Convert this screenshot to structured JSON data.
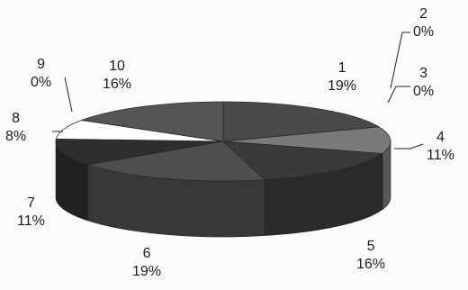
{
  "chart_data": {
    "type": "pie",
    "style": "3d-exploded",
    "categories": [
      "1",
      "2",
      "3",
      "4",
      "5",
      "6",
      "7",
      "8",
      "9",
      "10"
    ],
    "values": [
      19,
      0,
      0,
      11,
      16,
      19,
      11,
      8,
      0,
      16
    ],
    "labels": [
      {
        "name": "1",
        "pct": "19%"
      },
      {
        "name": "2",
        "pct": "0%"
      },
      {
        "name": "3",
        "pct": "0%"
      },
      {
        "name": "4",
        "pct": "11%"
      },
      {
        "name": "5",
        "pct": "16%"
      },
      {
        "name": "6",
        "pct": "19%"
      },
      {
        "name": "7",
        "pct": "11%"
      },
      {
        "name": "8",
        "pct": "8%"
      },
      {
        "name": "9",
        "pct": "0%"
      },
      {
        "name": "10",
        "pct": "16%"
      }
    ],
    "slice_colors": [
      "#4a4a4a",
      "#3a3a3a",
      "#3a3a3a",
      "#7a7a7a",
      "#3a3a3a",
      "#4e4e4e",
      "#2e2e2e",
      "#ffffff",
      "#3a3a3a",
      "#555555"
    ],
    "legend": "none",
    "title": ""
  }
}
